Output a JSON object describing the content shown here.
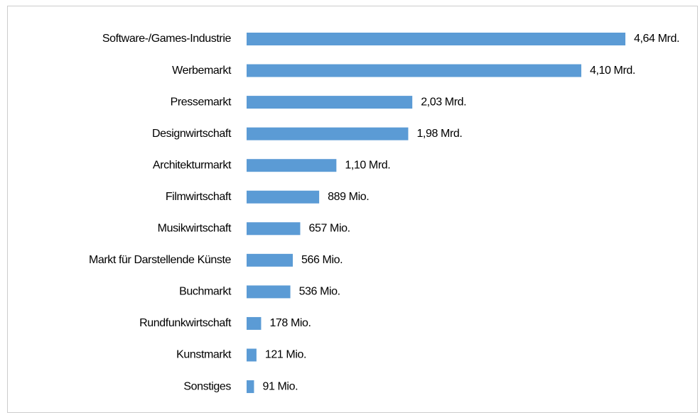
{
  "chart_data": {
    "type": "barh",
    "categories": [
      "Software-/Games-Industrie",
      "Werbemarkt",
      "Pressemarkt",
      "Designwirtschaft",
      "Architekturmarkt",
      "Filmwirtschaft",
      "Musikwirtschaft",
      "Markt für Darstellende Künste",
      "Buchmarkt",
      "Rundfunkwirtschaft",
      "Kunstmarkt",
      "Sonstiges"
    ],
    "values": [
      4640,
      4100,
      2030,
      1980,
      1100,
      889,
      657,
      566,
      536,
      178,
      121,
      91
    ],
    "value_labels": [
      "4,64 Mrd.",
      "4,10 Mrd.",
      "2,03 Mrd.",
      "1,98 Mrd.",
      "1,10 Mrd.",
      "889 Mio.",
      "657 Mio.",
      "566 Mio.",
      "536 Mio.",
      "178 Mio.",
      "121 Mio.",
      "91 Mio."
    ],
    "color": "#5b9bd5"
  }
}
